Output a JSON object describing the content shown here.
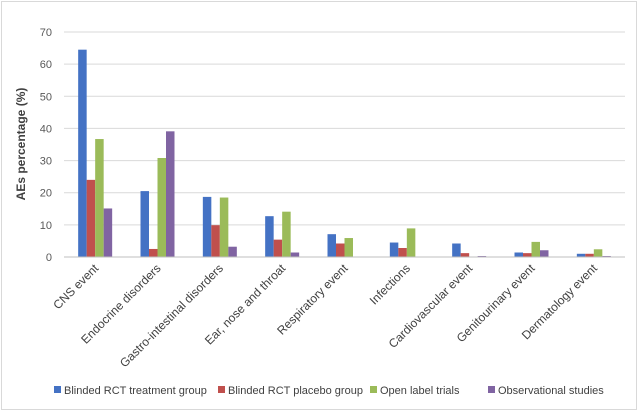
{
  "chart_data": {
    "type": "bar",
    "title": "",
    "xlabel": "",
    "ylabel": "AEs percentage (%)",
    "ylim": [
      0,
      70
    ],
    "yticks": [
      0,
      10,
      20,
      30,
      40,
      50,
      60,
      70
    ],
    "grid": true,
    "legend_position": "bottom",
    "categories": [
      "CNS event",
      "Endocrine disorders",
      "Gastro-intestinal disorders",
      "Ear, nose and throat",
      "Respiratory event",
      "Infections",
      "Cardiovascular event",
      "Genitourinary event",
      "Dermatology event"
    ],
    "series": [
      {
        "name": "Blinded RCT treatment group",
        "color": "#4472C4",
        "values": [
          64.5,
          20.5,
          18.7,
          12.7,
          7.1,
          4.5,
          4.2,
          1.4,
          1.0
        ]
      },
      {
        "name": "Blinded RCT placebo group",
        "color": "#C0504D",
        "values": [
          24.0,
          2.5,
          9.9,
          5.4,
          4.2,
          2.8,
          1.2,
          1.2,
          1.0
        ]
      },
      {
        "name": "Open label trials",
        "color": "#9BBB59",
        "values": [
          36.7,
          30.8,
          18.5,
          14.1,
          5.9,
          8.9,
          0.0,
          4.7,
          2.4
        ]
      },
      {
        "name": "Observational studies",
        "color": "#8064A2",
        "values": [
          15.1,
          39.1,
          3.2,
          1.4,
          0.0,
          0.0,
          0.3,
          2.1,
          0.3
        ]
      }
    ]
  }
}
